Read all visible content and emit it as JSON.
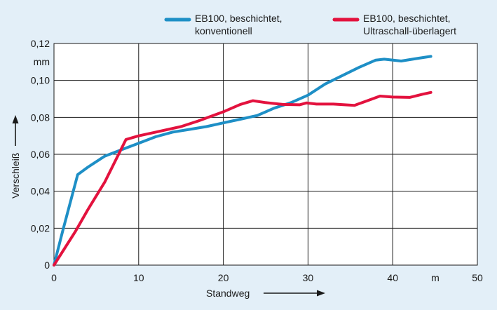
{
  "chart_data": {
    "type": "line",
    "xlabel": "Standweg",
    "ylabel": "Verschleiß",
    "x_unit": "m",
    "y_unit": "mm",
    "xlim": [
      0,
      50
    ],
    "ylim": [
      0,
      0.12
    ],
    "x_ticks": [
      "0",
      "10",
      "20",
      "30",
      "40",
      "50"
    ],
    "y_ticks": [
      "0",
      "0,02",
      "0,04",
      "0,06",
      "0,08",
      "0,10",
      "0,12"
    ],
    "grid": true,
    "legend_position": "top",
    "series": [
      {
        "name": "EB100, beschichtet, konventionell",
        "color": "#1e8fc6",
        "points": [
          [
            0,
            0
          ],
          [
            1,
            0.018
          ],
          [
            2.8,
            0.049
          ],
          [
            4,
            0.053
          ],
          [
            6,
            0.059
          ],
          [
            8,
            0.0625
          ],
          [
            10,
            0.066
          ],
          [
            12,
            0.0695
          ],
          [
            14,
            0.072
          ],
          [
            16,
            0.0735
          ],
          [
            18,
            0.075
          ],
          [
            20,
            0.077
          ],
          [
            22,
            0.079
          ],
          [
            24,
            0.081
          ],
          [
            26,
            0.085
          ],
          [
            28,
            0.088
          ],
          [
            30,
            0.092
          ],
          [
            32,
            0.098
          ],
          [
            34,
            0.1025
          ],
          [
            36,
            0.107
          ],
          [
            38,
            0.111
          ],
          [
            39,
            0.1115
          ],
          [
            41,
            0.1105
          ],
          [
            43,
            0.112
          ],
          [
            44.5,
            0.113
          ]
        ]
      },
      {
        "name": "EB100, beschichtet, Ultraschall-überlagert",
        "color": "#e3123e",
        "points": [
          [
            0,
            0
          ],
          [
            2.5,
            0.018
          ],
          [
            4,
            0.03
          ],
          [
            6,
            0.045
          ],
          [
            8.5,
            0.068
          ],
          [
            10,
            0.07
          ],
          [
            12,
            0.072
          ],
          [
            15,
            0.075
          ],
          [
            17,
            0.078
          ],
          [
            20,
            0.083
          ],
          [
            22,
            0.087
          ],
          [
            23.5,
            0.089
          ],
          [
            25,
            0.088
          ],
          [
            27,
            0.087
          ],
          [
            29,
            0.0868
          ],
          [
            29.8,
            0.0878
          ],
          [
            31,
            0.0872
          ],
          [
            33,
            0.0872
          ],
          [
            35.5,
            0.0865
          ],
          [
            37,
            0.089
          ],
          [
            38.5,
            0.0915
          ],
          [
            40,
            0.091
          ],
          [
            42,
            0.0908
          ],
          [
            43.5,
            0.0925
          ],
          [
            44.5,
            0.0935
          ]
        ]
      }
    ]
  }
}
